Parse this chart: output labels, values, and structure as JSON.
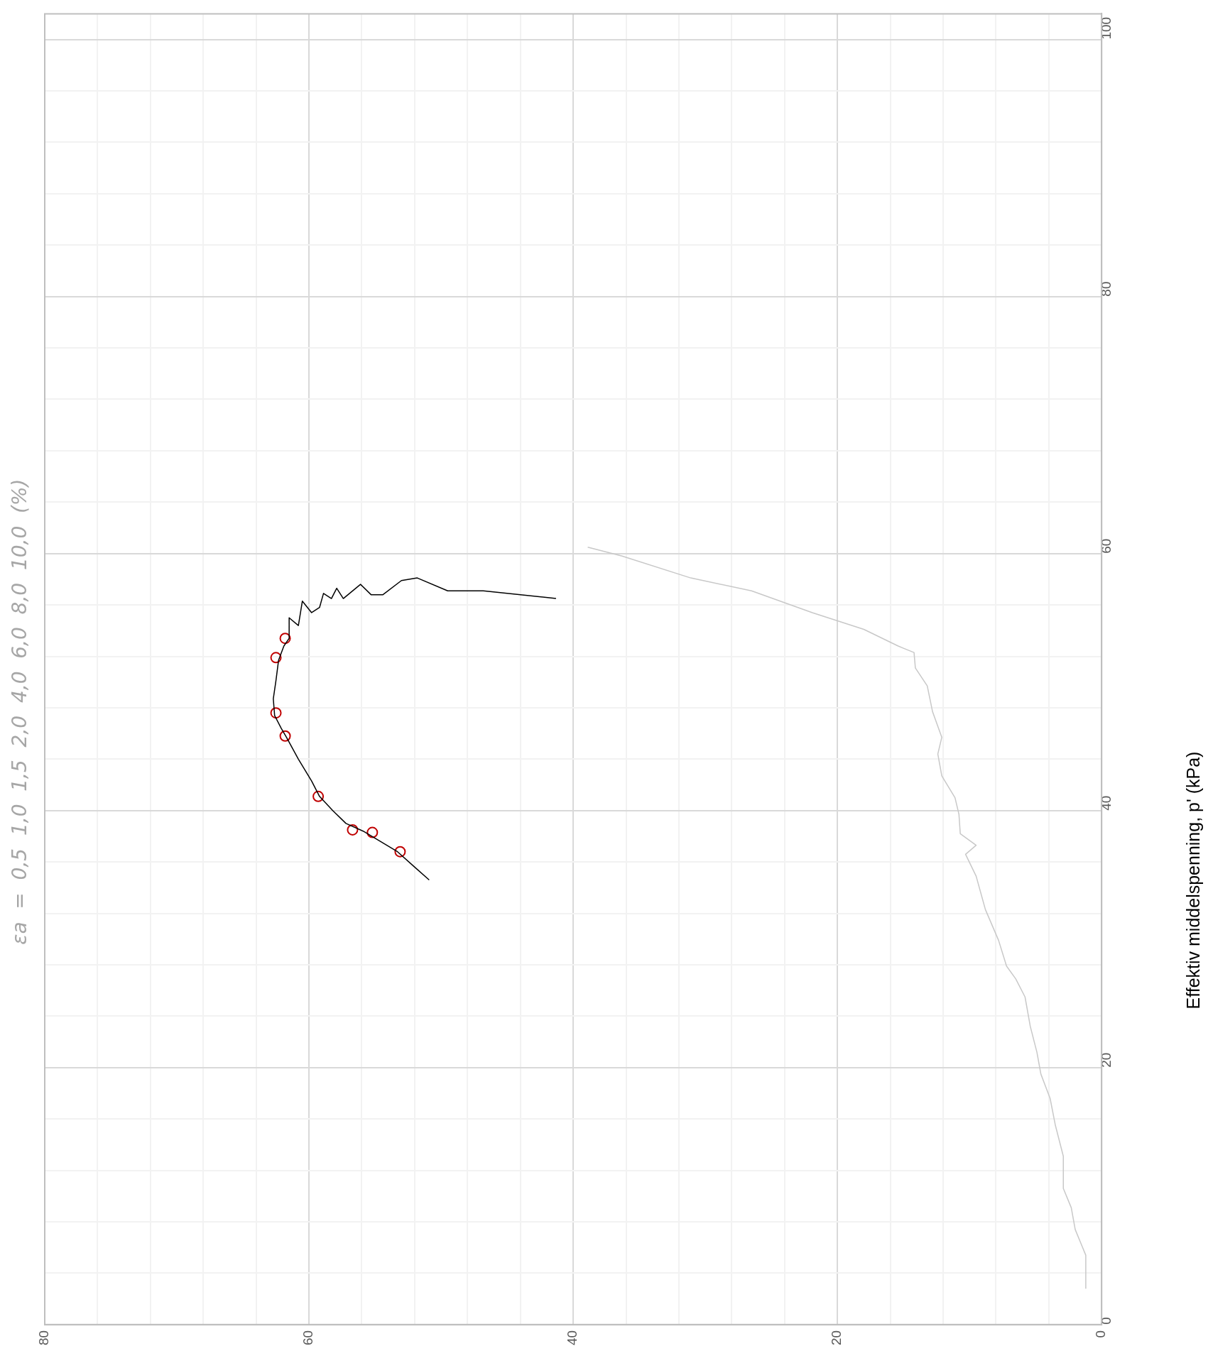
{
  "chart_data": {
    "type": "line",
    "title": "εa  =  0,5  1,0  1,5  2,0  4,0  6,0  8,0  10,0  (%)",
    "ylabel": "Effektiv middelspenning, p' (kPa)",
    "ylim": [
      0,
      102
    ],
    "yticks": [
      0,
      {
        "value": 4,
        "label": null
      },
      {
        "value": 8,
        "label": null
      },
      {
        "value": 12,
        "label": null
      },
      {
        "value": 16,
        "label": null
      },
      20,
      {
        "value": 24,
        "label": null
      },
      {
        "value": 28,
        "label": null
      },
      {
        "value": 32,
        "label": null
      },
      {
        "value": 36,
        "label": null
      },
      40,
      {
        "value": 44,
        "label": null
      },
      {
        "value": 48,
        "label": null
      },
      {
        "value": 52,
        "label": null
      },
      {
        "value": 56,
        "label": null
      },
      60,
      {
        "value": 64,
        "label": null
      },
      {
        "value": 68,
        "label": null
      },
      {
        "value": 72,
        "label": null
      },
      {
        "value": 76,
        "label": null
      },
      80,
      {
        "value": 84,
        "label": null
      },
      {
        "value": 88,
        "label": null
      },
      {
        "value": 92,
        "label": null
      },
      {
        "value": 96,
        "label": null
      },
      100
    ],
    "xlim": [
      80,
      0
    ],
    "xticks": [
      80,
      {
        "value": 76,
        "label": null
      },
      {
        "value": 72,
        "label": null
      },
      {
        "value": 68,
        "label": null
      },
      {
        "value": 64,
        "label": null
      },
      60,
      {
        "value": 56,
        "label": null
      },
      {
        "value": 52,
        "label": null
      },
      {
        "value": 48,
        "label": null
      },
      {
        "value": 44,
        "label": null
      },
      40,
      {
        "value": 36,
        "label": null
      },
      {
        "value": 32,
        "label": null
      },
      {
        "value": 28,
        "label": null
      },
      {
        "value": 24,
        "label": null
      },
      20,
      {
        "value": 16,
        "label": null
      },
      {
        "value": 12,
        "label": null
      },
      {
        "value": 8,
        "label": null
      },
      {
        "value": 4,
        "label": null
      },
      0
    ],
    "grid": true,
    "series": [
      {
        "type": "line",
        "color": "#c8c8c8",
        "marker": "none",
        "values": [
          2.8,
          5.4,
          7.4,
          9.1,
          10.6,
          13.1,
          15.5,
          17.6,
          19.5,
          21.2,
          23.2,
          25.5,
          26.9,
          27.9,
          29.9,
          32.3,
          34.9,
          36.6,
          37.3,
          38.2,
          39.7,
          41.0,
          42.7,
          44.4,
          45.7,
          47.7,
          49.7,
          51.1,
          52.3,
          52.8,
          54.1,
          55.4,
          57.1,
          58.1,
          59.8,
          60.5
        ],
        "x": [
          1.2,
          1.2,
          2.0,
          2.3,
          2.9,
          2.9,
          3.5,
          3.9,
          4.6,
          4.9,
          5.4,
          5.8,
          6.5,
          7.2,
          7.8,
          8.8,
          9.5,
          10.3,
          9.5,
          10.7,
          10.8,
          11.1,
          12.1,
          12.4,
          12.1,
          12.8,
          13.2,
          14.1,
          14.2,
          15.4,
          18.0,
          21.9,
          26.5,
          31.1,
          36.3,
          38.9
        ]
      },
      {
        "type": "line",
        "color": "#000000",
        "marker": "none",
        "values": [
          56.5,
          57.1,
          57.1,
          58.1,
          57.9,
          56.8,
          56.8,
          57.6,
          56.5,
          57.3,
          56.5,
          56.9,
          55.8,
          55.4,
          56.3,
          54.4,
          55.0,
          53.4,
          52.8,
          51.7,
          50.1,
          48.7,
          47.4,
          46.4,
          45.7,
          44.0,
          42.3,
          41.1,
          40.0,
          39.0,
          38.4,
          37.6,
          36.8,
          35.6,
          34.6
        ],
        "x": [
          41.3,
          46.8,
          49.5,
          51.8,
          53.0,
          54.4,
          55.3,
          56.1,
          57.4,
          57.9,
          58.3,
          58.9,
          59.2,
          59.8,
          60.5,
          60.8,
          61.5,
          61.5,
          61.9,
          62.3,
          62.5,
          62.7,
          62.6,
          62.1,
          61.7,
          60.8,
          59.8,
          59.2,
          58.2,
          57.2,
          55.9,
          54.6,
          53.3,
          52.0,
          50.9
        ]
      },
      {
        "type": "scatter",
        "color": "#c00000",
        "marker": "circle",
        "values": [
          53.4,
          51.9,
          47.6,
          45.8,
          41.1,
          38.5,
          38.3,
          36.8
        ],
        "x": [
          61.8,
          62.5,
          62.5,
          61.8,
          59.3,
          56.7,
          55.2,
          53.1
        ]
      }
    ]
  }
}
